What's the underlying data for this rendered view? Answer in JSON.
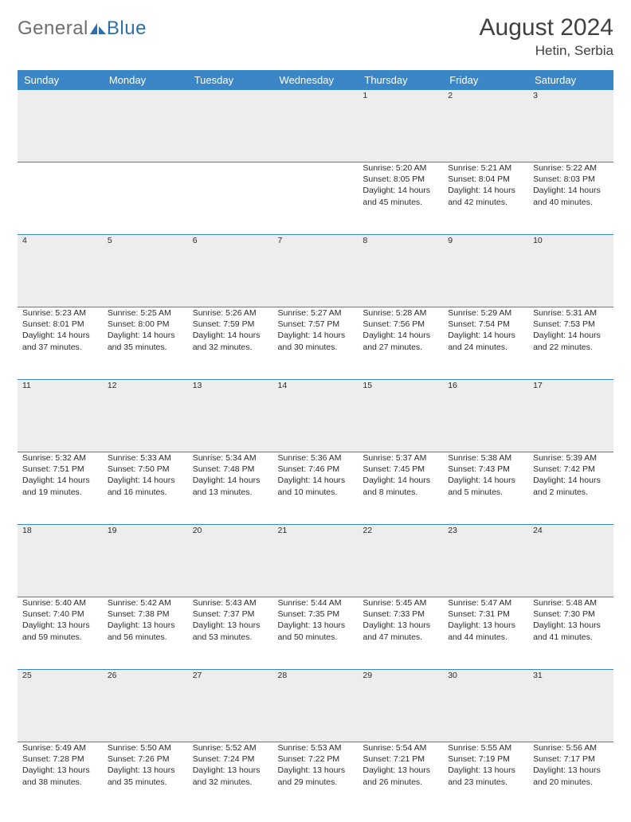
{
  "logo": {
    "text_a": "General",
    "text_b": "Blue"
  },
  "title": "August 2024",
  "location": "Hetin, Serbia",
  "colors": {
    "header_bg": "#3b86c6",
    "header_fg": "#ffffff",
    "daynum_bg": "#ededed",
    "rule": "#3b86c6",
    "logo_grey": "#6e6e6e",
    "logo_blue": "#2f6fa7"
  },
  "day_names": [
    "Sunday",
    "Monday",
    "Tuesday",
    "Wednesday",
    "Thursday",
    "Friday",
    "Saturday"
  ],
  "weeks": [
    [
      null,
      null,
      null,
      null,
      {
        "n": "1",
        "sr": "5:20 AM",
        "ss": "8:05 PM",
        "dh": "14",
        "dm": "45"
      },
      {
        "n": "2",
        "sr": "5:21 AM",
        "ss": "8:04 PM",
        "dh": "14",
        "dm": "42"
      },
      {
        "n": "3",
        "sr": "5:22 AM",
        "ss": "8:03 PM",
        "dh": "14",
        "dm": "40"
      }
    ],
    [
      {
        "n": "4",
        "sr": "5:23 AM",
        "ss": "8:01 PM",
        "dh": "14",
        "dm": "37"
      },
      {
        "n": "5",
        "sr": "5:25 AM",
        "ss": "8:00 PM",
        "dh": "14",
        "dm": "35"
      },
      {
        "n": "6",
        "sr": "5:26 AM",
        "ss": "7:59 PM",
        "dh": "14",
        "dm": "32"
      },
      {
        "n": "7",
        "sr": "5:27 AM",
        "ss": "7:57 PM",
        "dh": "14",
        "dm": "30"
      },
      {
        "n": "8",
        "sr": "5:28 AM",
        "ss": "7:56 PM",
        "dh": "14",
        "dm": "27"
      },
      {
        "n": "9",
        "sr": "5:29 AM",
        "ss": "7:54 PM",
        "dh": "14",
        "dm": "24"
      },
      {
        "n": "10",
        "sr": "5:31 AM",
        "ss": "7:53 PM",
        "dh": "14",
        "dm": "22"
      }
    ],
    [
      {
        "n": "11",
        "sr": "5:32 AM",
        "ss": "7:51 PM",
        "dh": "14",
        "dm": "19"
      },
      {
        "n": "12",
        "sr": "5:33 AM",
        "ss": "7:50 PM",
        "dh": "14",
        "dm": "16"
      },
      {
        "n": "13",
        "sr": "5:34 AM",
        "ss": "7:48 PM",
        "dh": "14",
        "dm": "13"
      },
      {
        "n": "14",
        "sr": "5:36 AM",
        "ss": "7:46 PM",
        "dh": "14",
        "dm": "10"
      },
      {
        "n": "15",
        "sr": "5:37 AM",
        "ss": "7:45 PM",
        "dh": "14",
        "dm": "8"
      },
      {
        "n": "16",
        "sr": "5:38 AM",
        "ss": "7:43 PM",
        "dh": "14",
        "dm": "5"
      },
      {
        "n": "17",
        "sr": "5:39 AM",
        "ss": "7:42 PM",
        "dh": "14",
        "dm": "2"
      }
    ],
    [
      {
        "n": "18",
        "sr": "5:40 AM",
        "ss": "7:40 PM",
        "dh": "13",
        "dm": "59"
      },
      {
        "n": "19",
        "sr": "5:42 AM",
        "ss": "7:38 PM",
        "dh": "13",
        "dm": "56"
      },
      {
        "n": "20",
        "sr": "5:43 AM",
        "ss": "7:37 PM",
        "dh": "13",
        "dm": "53"
      },
      {
        "n": "21",
        "sr": "5:44 AM",
        "ss": "7:35 PM",
        "dh": "13",
        "dm": "50"
      },
      {
        "n": "22",
        "sr": "5:45 AM",
        "ss": "7:33 PM",
        "dh": "13",
        "dm": "47"
      },
      {
        "n": "23",
        "sr": "5:47 AM",
        "ss": "7:31 PM",
        "dh": "13",
        "dm": "44"
      },
      {
        "n": "24",
        "sr": "5:48 AM",
        "ss": "7:30 PM",
        "dh": "13",
        "dm": "41"
      }
    ],
    [
      {
        "n": "25",
        "sr": "5:49 AM",
        "ss": "7:28 PM",
        "dh": "13",
        "dm": "38"
      },
      {
        "n": "26",
        "sr": "5:50 AM",
        "ss": "7:26 PM",
        "dh": "13",
        "dm": "35"
      },
      {
        "n": "27",
        "sr": "5:52 AM",
        "ss": "7:24 PM",
        "dh": "13",
        "dm": "32"
      },
      {
        "n": "28",
        "sr": "5:53 AM",
        "ss": "7:22 PM",
        "dh": "13",
        "dm": "29"
      },
      {
        "n": "29",
        "sr": "5:54 AM",
        "ss": "7:21 PM",
        "dh": "13",
        "dm": "26"
      },
      {
        "n": "30",
        "sr": "5:55 AM",
        "ss": "7:19 PM",
        "dh": "13",
        "dm": "23"
      },
      {
        "n": "31",
        "sr": "5:56 AM",
        "ss": "7:17 PM",
        "dh": "13",
        "dm": "20"
      }
    ]
  ],
  "labels": {
    "sunrise": "Sunrise:",
    "sunset": "Sunset:",
    "daylight_prefix": "Daylight:",
    "hours_word": "hours",
    "and_word": "and",
    "minutes_word": "minutes."
  }
}
